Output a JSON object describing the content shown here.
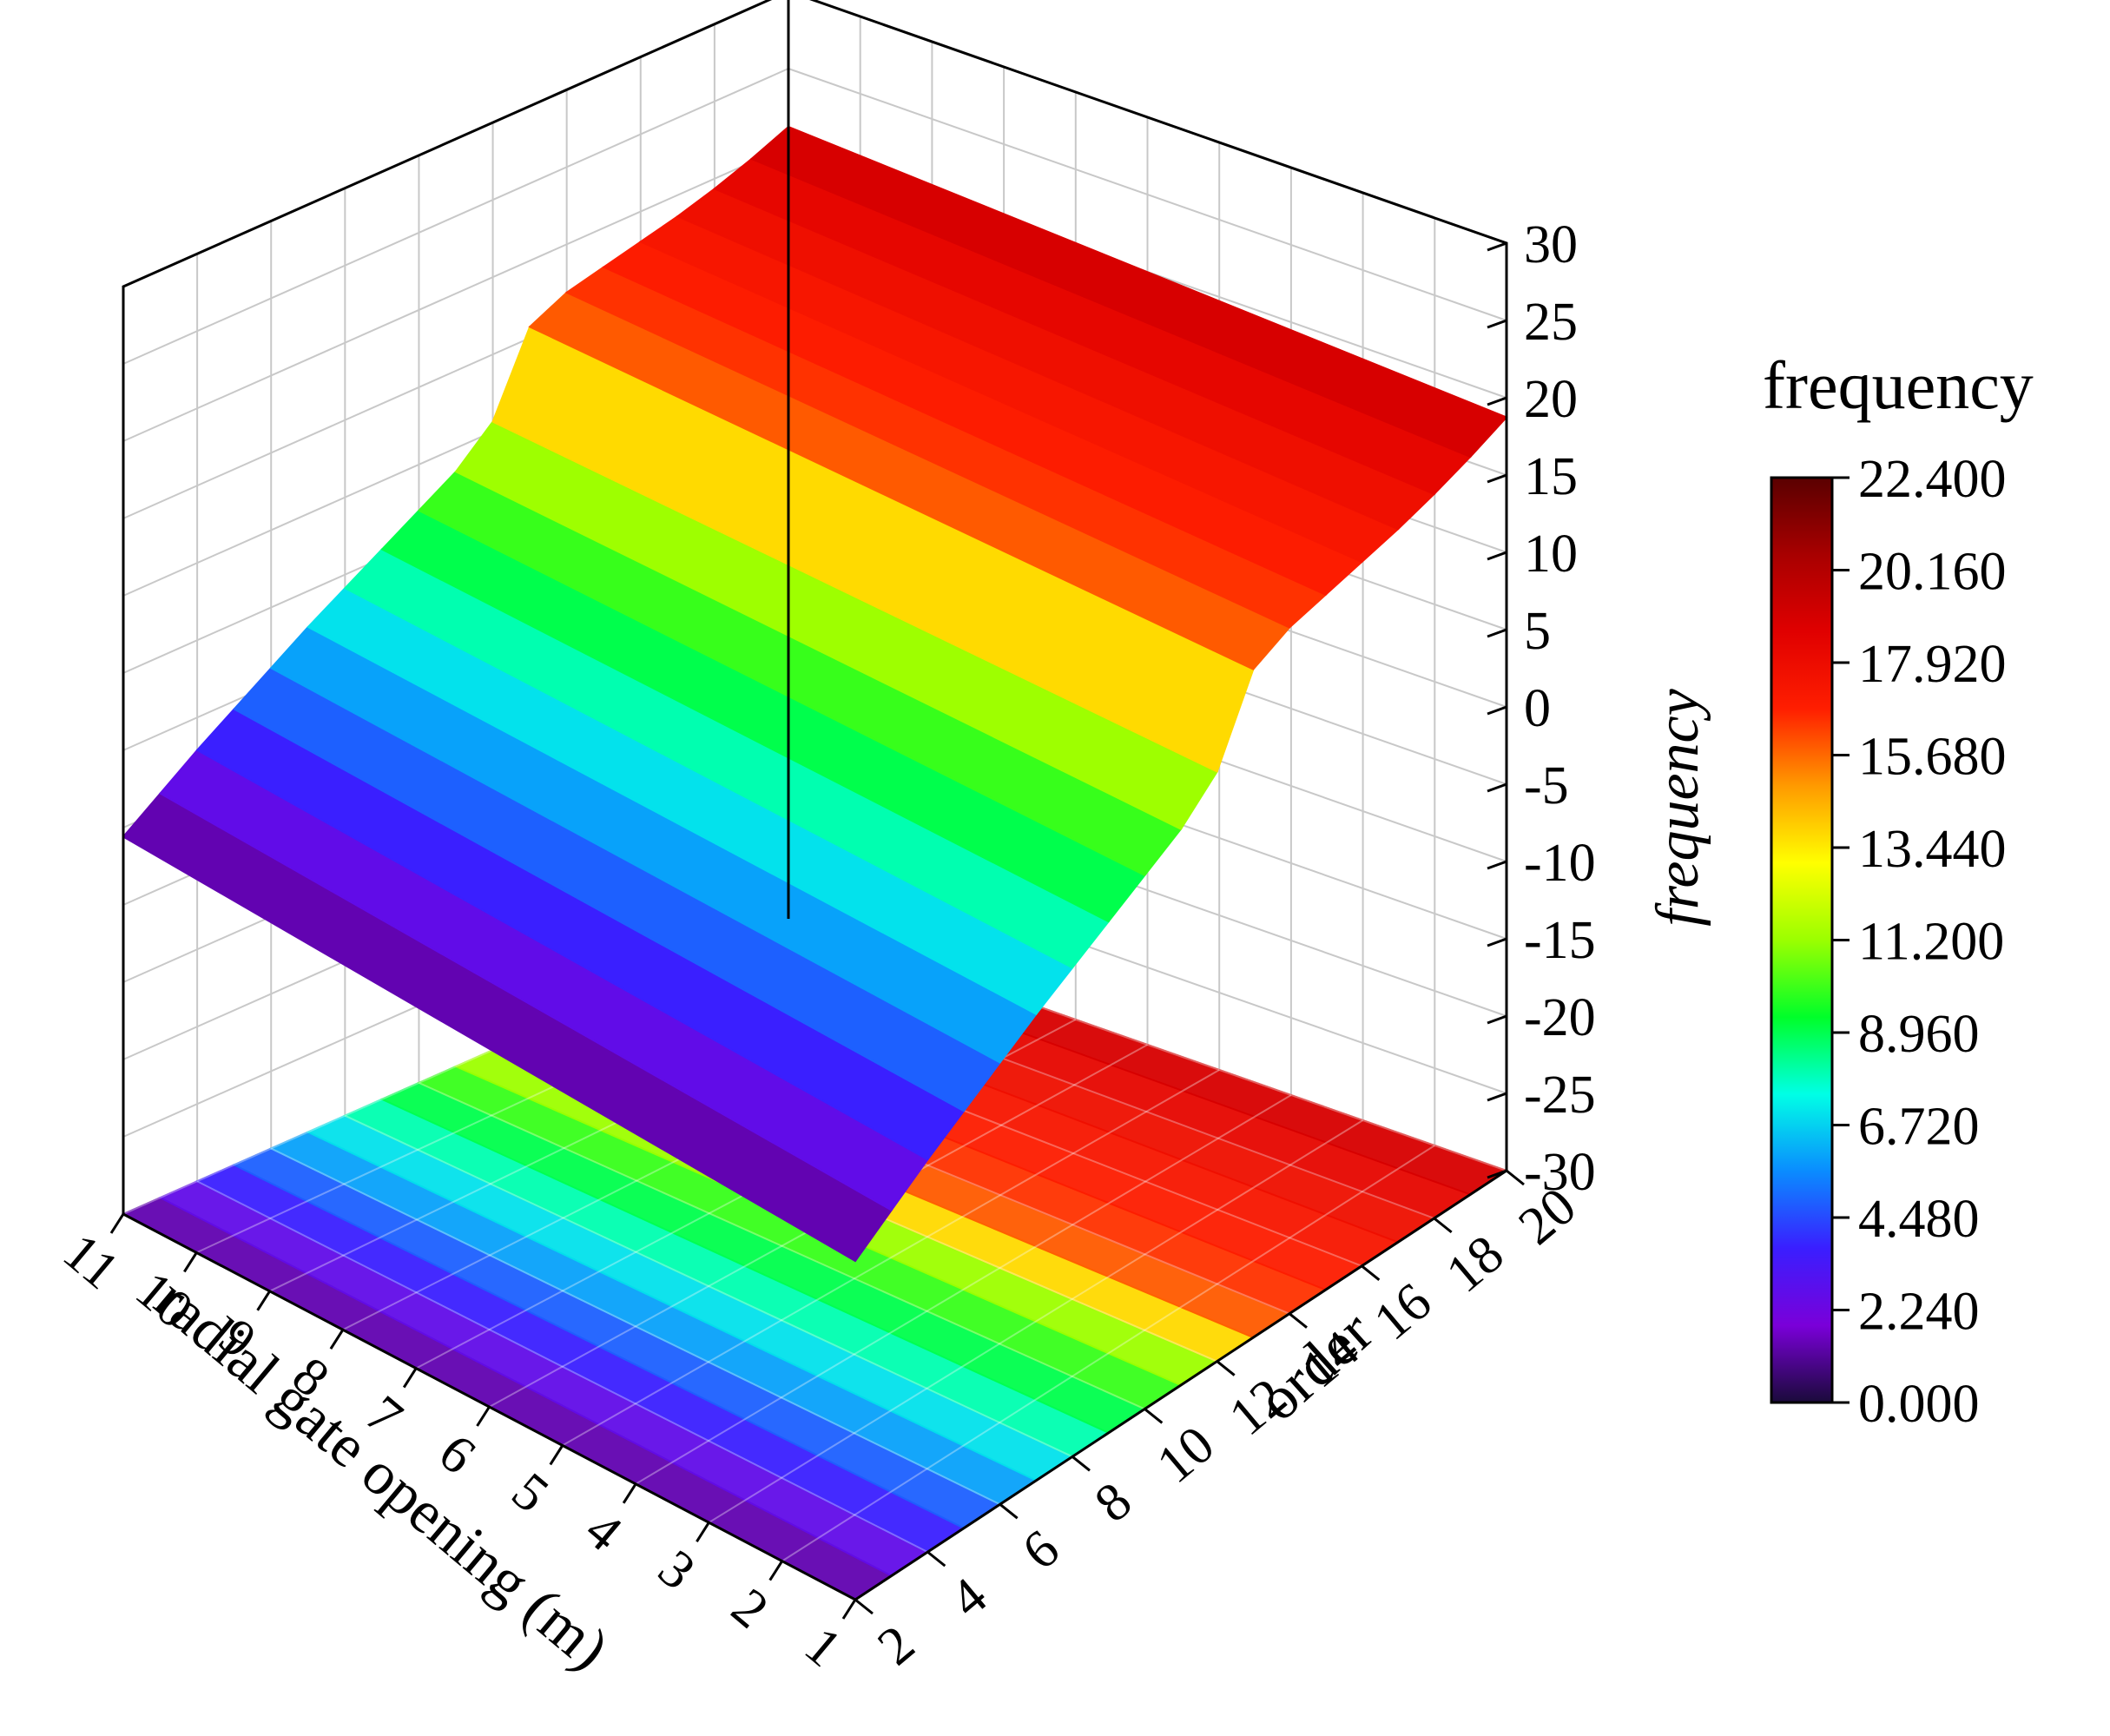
{
  "chart_data": {
    "type": "surface3d",
    "x_axis": {
      "label": "radial gate opening (m)",
      "ticks": [
        1,
        2,
        3,
        4,
        5,
        6,
        7,
        8,
        9,
        10,
        11
      ],
      "range": [
        1,
        11
      ]
    },
    "y_axis": {
      "label": "order",
      "ticks": [
        2,
        4,
        6,
        8,
        10,
        12,
        14,
        16,
        18,
        20
      ],
      "range": [
        2,
        20
      ]
    },
    "z_axis": {
      "label": "frequency",
      "ticks": [
        -30,
        -25,
        -20,
        -15,
        -10,
        -5,
        0,
        5,
        10,
        15,
        20,
        25,
        30
      ],
      "range": [
        -30,
        30
      ]
    },
    "colorbar": {
      "title": "frequency",
      "ticks": [
        "0.000",
        "2.240",
        "4.480",
        "6.720",
        "8.960",
        "11.200",
        "13.440",
        "15.680",
        "17.920",
        "20.160",
        "22.400"
      ],
      "range": [
        0,
        22.4
      ],
      "colors": [
        "#1a0a3a",
        "#7a00d9",
        "#3a1eff",
        "#0a8cff",
        "#00ffe6",
        "#00ff2a",
        "#9bff00",
        "#ffff00",
        "#ff9a00",
        "#ff1e00",
        "#e00000",
        "#a80000",
        "#5a0000"
      ]
    },
    "projection": "surface with bottom contour projection",
    "grid": true,
    "frequency_by_order": [
      {
        "order": 2,
        "frequency": 0.8
      },
      {
        "order": 3,
        "frequency": 2.0
      },
      {
        "order": 4,
        "frequency": 3.2
      },
      {
        "order": 5,
        "frequency": 4.3
      },
      {
        "order": 6,
        "frequency": 5.4
      },
      {
        "order": 7,
        "frequency": 6.5
      },
      {
        "order": 8,
        "frequency": 7.5
      },
      {
        "order": 9,
        "frequency": 8.5
      },
      {
        "order": 10,
        "frequency": 9.5
      },
      {
        "order": 11,
        "frequency": 10.5
      },
      {
        "order": 12,
        "frequency": 12.0
      },
      {
        "order": 13,
        "frequency": 15.5
      },
      {
        "order": 14,
        "frequency": 16.3
      },
      {
        "order": 15,
        "frequency": 16.7
      },
      {
        "order": 16,
        "frequency": 17.1
      },
      {
        "order": 17,
        "frequency": 17.5
      },
      {
        "order": 18,
        "frequency": 18.0
      },
      {
        "order": 19,
        "frequency": 18.6
      },
      {
        "order": 20,
        "frequency": 19.3
      }
    ]
  }
}
